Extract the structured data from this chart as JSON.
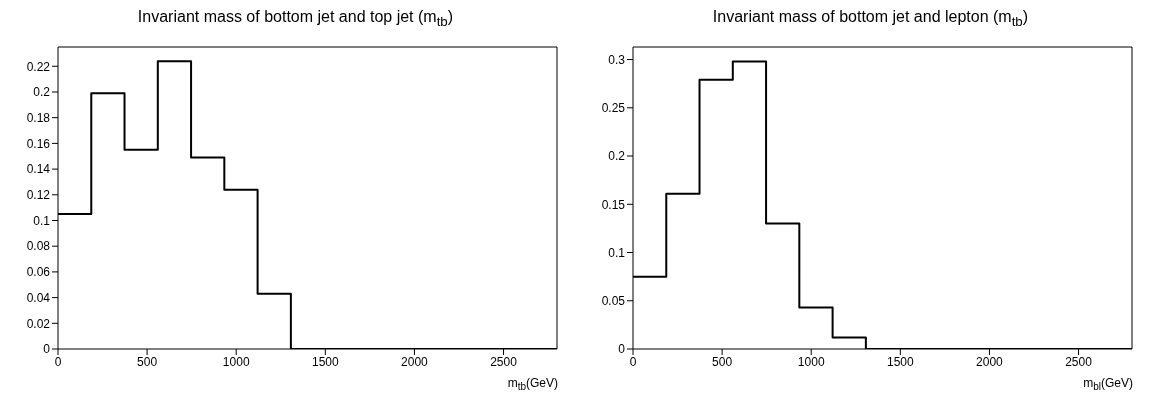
{
  "chart_data": [
    {
      "type": "histogram",
      "title": "Invariant mass of bottom jet and top jet (m$_{tb}$)",
      "xlabel": "m$_{tb}$(GeV)",
      "color": "#000000",
      "bins": [
        0,
        186.7,
        373.3,
        560,
        746.7,
        933.3,
        1120,
        1306.7,
        1493.3,
        1680,
        1866.7,
        2053.3,
        2240,
        2426.7,
        2613.3,
        2800
      ],
      "values": [
        0.105,
        0.199,
        0.155,
        0.224,
        0.149,
        0.124,
        0.043,
        0,
        0,
        0,
        0,
        0,
        0,
        0,
        0
      ],
      "xlim": [
        0,
        2800
      ],
      "xticks": [
        0,
        500,
        1000,
        1500,
        2000,
        2500
      ],
      "ylim": [
        0,
        0.235
      ],
      "yticks": [
        0,
        0.02,
        0.04,
        0.06,
        0.08,
        0.1,
        0.12,
        0.14,
        0.16,
        0.18,
        0.2,
        0.22
      ]
    },
    {
      "type": "histogram",
      "title": "Invariant mass of bottom jet and lepton (m$_{tb}$)",
      "xlabel": "m$_{bl}$(GeV)",
      "color": "#000000",
      "bins": [
        0,
        186.7,
        373.3,
        560,
        746.7,
        933.3,
        1120,
        1306.7,
        1493.3,
        1680,
        1866.7,
        2053.3,
        2240,
        2426.7,
        2613.3,
        2800
      ],
      "values": [
        0.075,
        0.161,
        0.279,
        0.298,
        0.13,
        0.043,
        0.012,
        0,
        0,
        0,
        0,
        0,
        0,
        0,
        0
      ],
      "xlim": [
        0,
        2800
      ],
      "xticks": [
        0,
        500,
        1000,
        1500,
        2000,
        2500
      ],
      "ylim": [
        0,
        0.313
      ],
      "yticks": [
        0,
        0.05,
        0.1,
        0.15,
        0.2,
        0.25,
        0.3
      ]
    }
  ]
}
